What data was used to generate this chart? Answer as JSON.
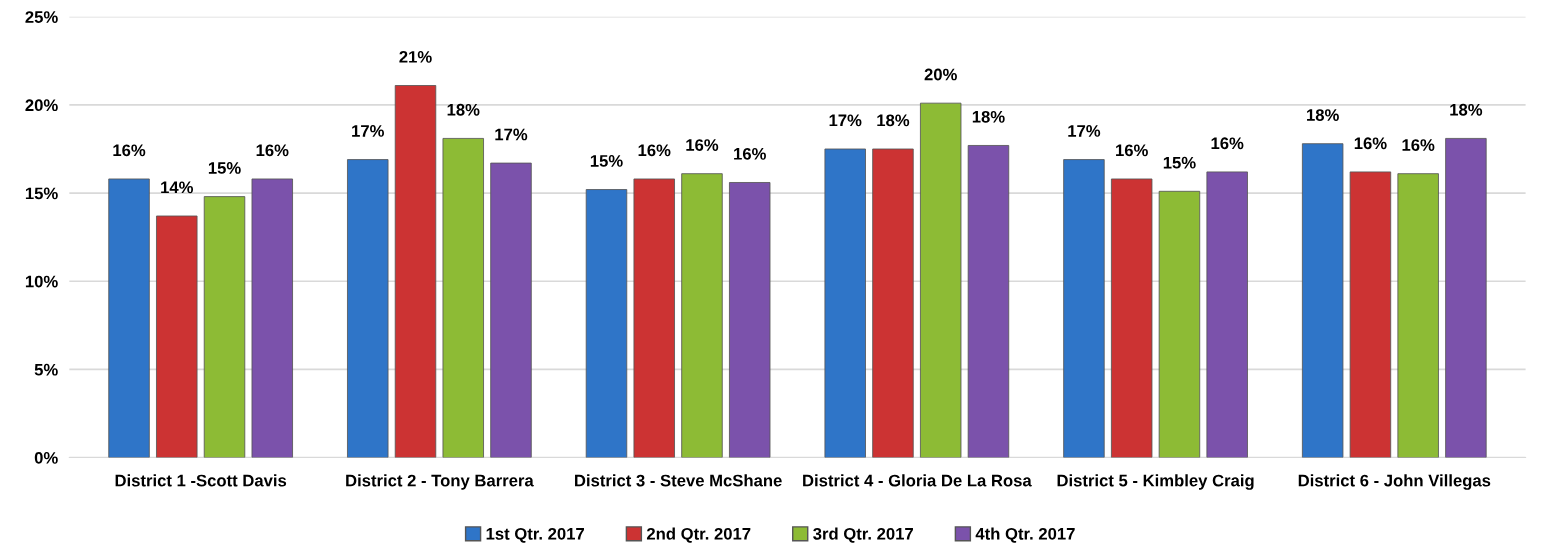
{
  "chart_data": {
    "type": "bar",
    "categories": [
      "District 1 -Scott Davis",
      "District 2 - Tony Barrera",
      "District 3 - Steve McShane",
      "District 4 - Gloria De La Rosa",
      "District 5 - Kimbley Craig",
      "District 6 - John Villegas"
    ],
    "series": [
      {
        "name": "1st Qtr. 2017",
        "color": "#2f75c8",
        "values": [
          15.8,
          16.9,
          15.2,
          17.5,
          16.9,
          17.8
        ],
        "value_labels": [
          "16%",
          "17%",
          "15%",
          "17%",
          "17%",
          "18%"
        ]
      },
      {
        "name": "2nd Qtr. 2017",
        "color": "#cc3333",
        "values": [
          13.7,
          21.1,
          15.8,
          17.5,
          15.8,
          16.2
        ],
        "value_labels": [
          "14%",
          "21%",
          "16%",
          "18%",
          "16%",
          "16%"
        ]
      },
      {
        "name": "3rd Qtr. 2017",
        "color": "#8dbb35",
        "values": [
          14.8,
          18.1,
          16.1,
          20.1,
          15.1,
          16.1
        ],
        "value_labels": [
          "15%",
          "18%",
          "16%",
          "20%",
          "15%",
          "16%"
        ]
      },
      {
        "name": "4th Qtr. 2017",
        "color": "#7b52ab",
        "values": [
          15.8,
          16.7,
          15.6,
          17.7,
          16.2,
          18.1
        ],
        "value_labels": [
          "16%",
          "17%",
          "16%",
          "18%",
          "16%",
          "18%"
        ]
      }
    ],
    "ylim": [
      0,
      25
    ],
    "yticks": [
      {
        "value": 0,
        "label": "0%"
      },
      {
        "value": 5,
        "label": "5%"
      },
      {
        "value": 10,
        "label": "10%"
      },
      {
        "value": 15,
        "label": "15%"
      },
      {
        "value": 20,
        "label": "20%"
      },
      {
        "value": 25,
        "label": "25%"
      }
    ],
    "grid": "y",
    "legend": "bottom"
  }
}
